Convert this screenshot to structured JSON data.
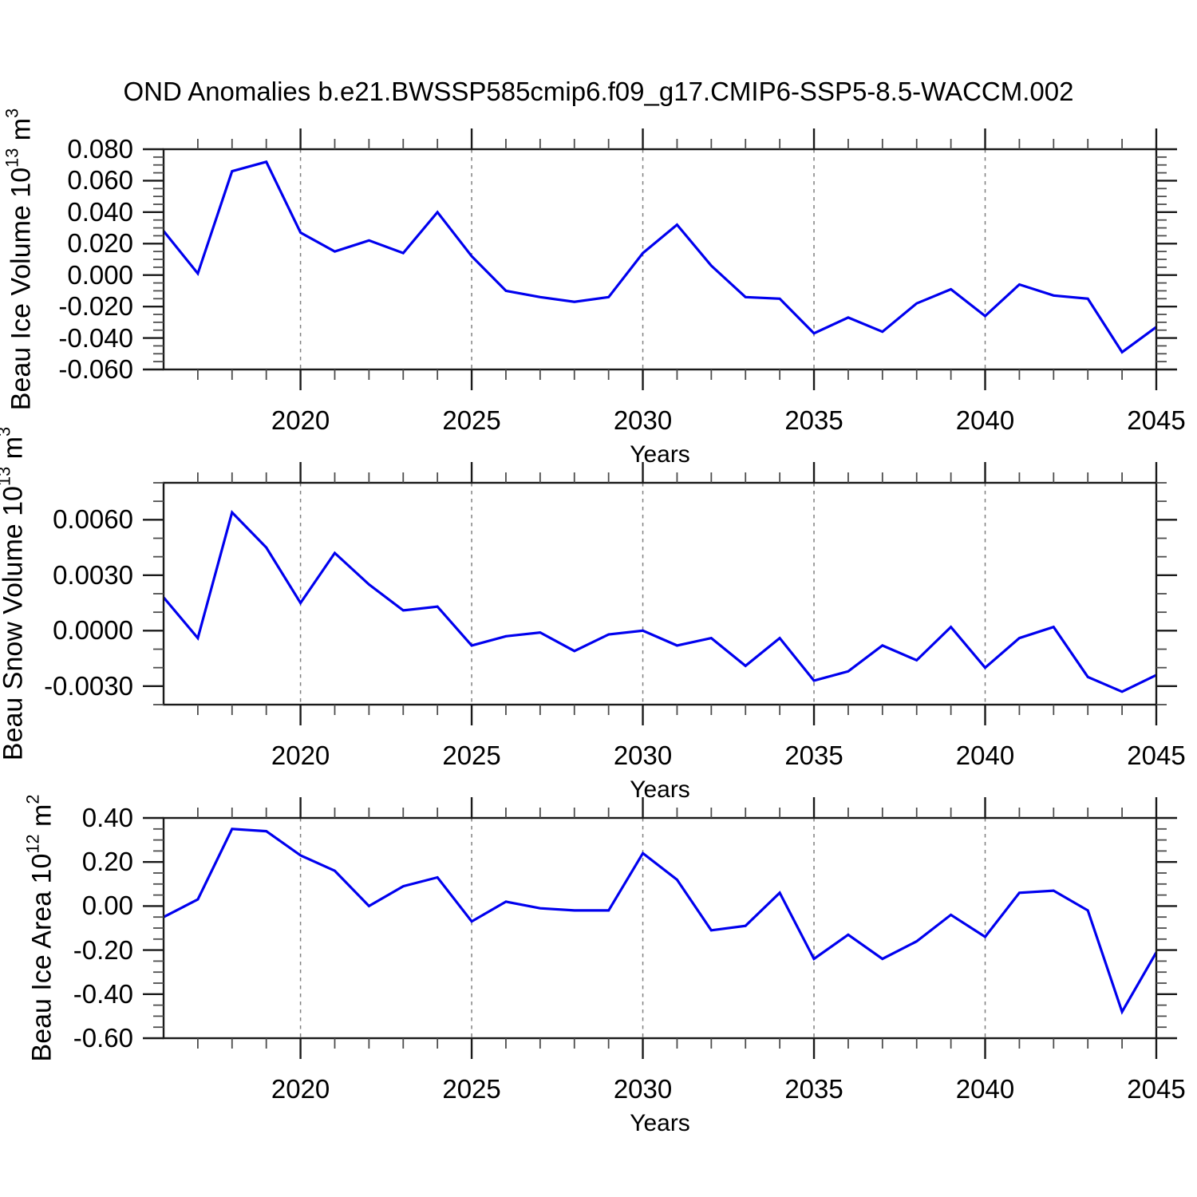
{
  "title": "OND Anomalies b.e21.BWSSP585cmip6.f09_g17.CMIP6-SSP5-8.5-WACCM.002",
  "x_axis": {
    "label": "Years",
    "range": [
      2016,
      2045
    ],
    "major_ticks": [
      2020,
      2025,
      2030,
      2035,
      2040,
      2045
    ],
    "tick_labels": [
      "2020",
      "2025",
      "2030",
      "2035",
      "2040",
      "2045"
    ],
    "minor_tick_step": 1,
    "gridlines": [
      2020,
      2025,
      2030,
      2035,
      2040
    ]
  },
  "style": {
    "line_color": "#0000ee",
    "grid_color": "#7f7f7f",
    "axis_color": "#1a1a1a",
    "minor_tick_color": "#4d4d4d",
    "background": "#ffffff"
  },
  "chart_data": [
    {
      "type": "line",
      "ylabel": {
        "pre": "Beau Ice Volume 10",
        "exp": "13",
        "unit": " m",
        "unit_exp": "3"
      },
      "ylim": [
        -0.06,
        0.08
      ],
      "ytick_values": [
        0.08,
        0.06,
        0.04,
        0.02,
        0.0,
        -0.02,
        -0.04,
        -0.06
      ],
      "ytick_labels": [
        "0.080",
        "0.060",
        "0.040",
        "0.020",
        "0.000",
        "-0.020",
        "-0.040",
        "-0.060"
      ],
      "yminor_step": 0.005,
      "x": [
        2016,
        2017,
        2018,
        2019,
        2020,
        2021,
        2022,
        2023,
        2024,
        2025,
        2026,
        2027,
        2028,
        2029,
        2030,
        2031,
        2032,
        2033,
        2034,
        2035,
        2036,
        2037,
        2038,
        2039,
        2040,
        2041,
        2042,
        2043,
        2044,
        2045
      ],
      "values": [
        0.028,
        0.001,
        0.066,
        0.072,
        0.027,
        0.015,
        0.022,
        0.014,
        0.04,
        0.012,
        -0.01,
        -0.014,
        -0.017,
        -0.014,
        0.014,
        0.032,
        0.006,
        -0.014,
        -0.015,
        -0.037,
        -0.027,
        -0.036,
        -0.018,
        -0.009,
        -0.026,
        -0.006,
        -0.013,
        -0.015,
        -0.049,
        -0.033
      ]
    },
    {
      "type": "line",
      "ylabel": {
        "pre": "Beau Snow Volume 10",
        "exp": "13",
        "unit": " m",
        "unit_exp": "3"
      },
      "ylim": [
        -0.004,
        0.008
      ],
      "ytick_values": [
        0.006,
        0.003,
        0.0,
        -0.003
      ],
      "ytick_labels": [
        "0.0060",
        "0.0030",
        "0.0000",
        "-0.0030"
      ],
      "yminor_step": 0.001,
      "x": [
        2016,
        2017,
        2018,
        2019,
        2020,
        2021,
        2022,
        2023,
        2024,
        2025,
        2026,
        2027,
        2028,
        2029,
        2030,
        2031,
        2032,
        2033,
        2034,
        2035,
        2036,
        2037,
        2038,
        2039,
        2040,
        2041,
        2042,
        2043,
        2044,
        2045
      ],
      "values": [
        0.0018,
        -0.0004,
        0.0064,
        0.0045,
        0.0015,
        0.0042,
        0.0025,
        0.0011,
        0.0013,
        -0.0008,
        -0.0003,
        -0.0001,
        -0.0011,
        -0.0002,
        0.0,
        -0.0008,
        -0.0004,
        -0.0019,
        -0.0004,
        -0.0027,
        -0.0022,
        -0.0008,
        -0.0016,
        0.0002,
        -0.002,
        -0.0004,
        0.0002,
        -0.0025,
        -0.0033,
        -0.0024
      ]
    },
    {
      "type": "line",
      "ylabel": {
        "pre": "Beau Ice Area 10",
        "exp": "12",
        "unit": " m",
        "unit_exp": "2"
      },
      "ylim": [
        -0.6,
        0.4
      ],
      "ytick_values": [
        0.4,
        0.2,
        0.0,
        -0.2,
        -0.4,
        -0.6
      ],
      "ytick_labels": [
        "0.40",
        "0.20",
        "0.00",
        "-0.20",
        "-0.40",
        "-0.60"
      ],
      "yminor_step": 0.05,
      "x": [
        2016,
        2017,
        2018,
        2019,
        2020,
        2021,
        2022,
        2023,
        2024,
        2025,
        2026,
        2027,
        2028,
        2029,
        2030,
        2031,
        2032,
        2033,
        2034,
        2035,
        2036,
        2037,
        2038,
        2039,
        2040,
        2041,
        2042,
        2043,
        2044,
        2045
      ],
      "values": [
        -0.05,
        0.03,
        0.35,
        0.34,
        0.23,
        0.16,
        0.0,
        0.09,
        0.13,
        -0.07,
        0.02,
        -0.01,
        -0.02,
        -0.02,
        0.24,
        0.12,
        -0.11,
        -0.09,
        0.06,
        -0.24,
        -0.13,
        -0.24,
        -0.16,
        -0.04,
        -0.14,
        0.06,
        0.07,
        -0.02,
        -0.48,
        -0.21
      ]
    }
  ]
}
